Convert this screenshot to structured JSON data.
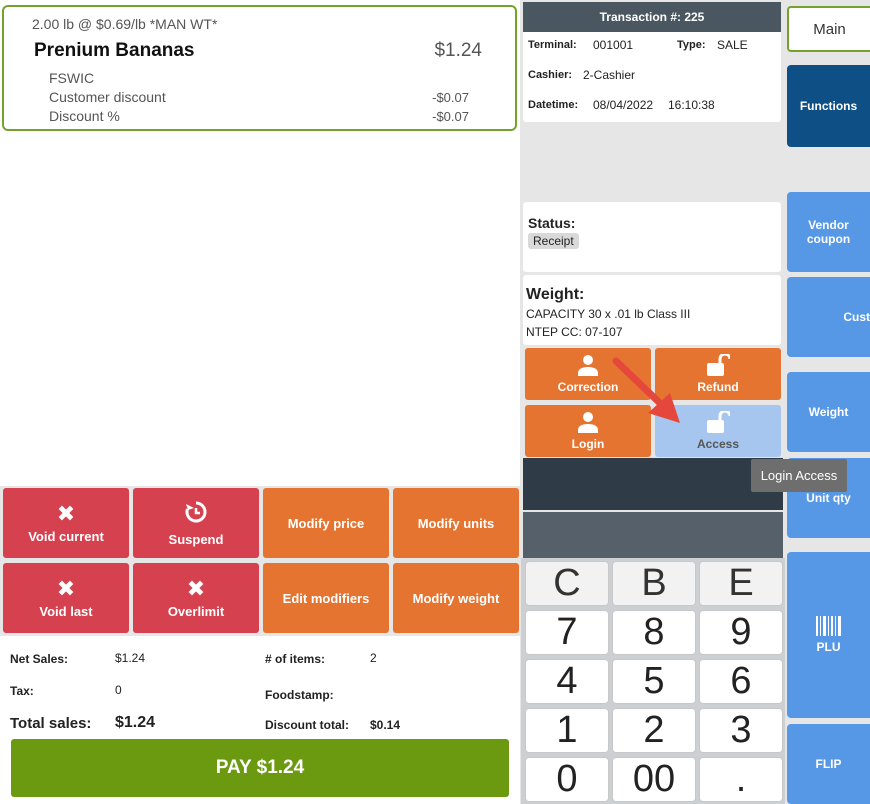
{
  "item": {
    "qty_line": "2.00 lb @ $0.69/lb *MAN WT*",
    "name": "Prenium Bananas",
    "price": "$1.24",
    "modifiers": [
      {
        "label": "FSWIC",
        "value": ""
      },
      {
        "label": "Customer discount",
        "value": "-$0.07"
      },
      {
        "label": "Discount %",
        "value": "-$0.07"
      }
    ]
  },
  "actions": {
    "void_current": "Void current",
    "suspend": "Suspend",
    "modify_price": "Modify price",
    "modify_units": "Modify units",
    "void_last": "Void last",
    "overlimit": "Overlimit",
    "edit_modifiers": "Edit modifiers",
    "modify_weight": "Modify weight"
  },
  "totals": {
    "net_sales_label": "Net Sales:",
    "net_sales": "$1.24",
    "items_label": "# of items:",
    "items": "2",
    "tax_label": "Tax:",
    "tax": "0",
    "foodstamp_label": "Foodstamp:",
    "foodstamp": "",
    "total_label": "Total sales:",
    "total": "$1.24",
    "discount_label": "Discount total:",
    "discount": "$0.14",
    "pay_label": "PAY $1.24"
  },
  "transaction": {
    "header": "Transaction #: 225",
    "terminal_label": "Terminal:",
    "terminal": "001001",
    "type_label": "Type:",
    "type": "SALE",
    "cashier_label": "Cashier:",
    "cashier": "2-Cashier",
    "datetime_label": "Datetime:",
    "date": "08/04/2022",
    "time": "16:10:38"
  },
  "status": {
    "label": "Status:",
    "value": "Receipt"
  },
  "weight": {
    "label": "Weight:",
    "line1": "CAPACITY 30 x .01 lb Class III",
    "line2": "NTEP CC: 07-107"
  },
  "access_buttons": {
    "correction": "Correction",
    "refund": "Refund",
    "login": "Login",
    "access": "Access"
  },
  "tooltip": "Login Access",
  "keypad": [
    "C",
    "B",
    "E",
    "7",
    "8",
    "9",
    "4",
    "5",
    "6",
    "1",
    "2",
    "3",
    "0",
    "00",
    "."
  ],
  "right_menu": {
    "main": "Main",
    "functions": "Functions",
    "vendor_coupon": "Vendor coupon",
    "cust": "Cust",
    "weight": "Weight",
    "unit_qty": "Unit qty",
    "plu": "PLU",
    "flip": "FLIP"
  },
  "colors": {
    "accent_green": "#6b9910",
    "red": "#d6414f",
    "orange": "#e57430",
    "blue": "#5698e6",
    "navy": "#0e4f86"
  }
}
